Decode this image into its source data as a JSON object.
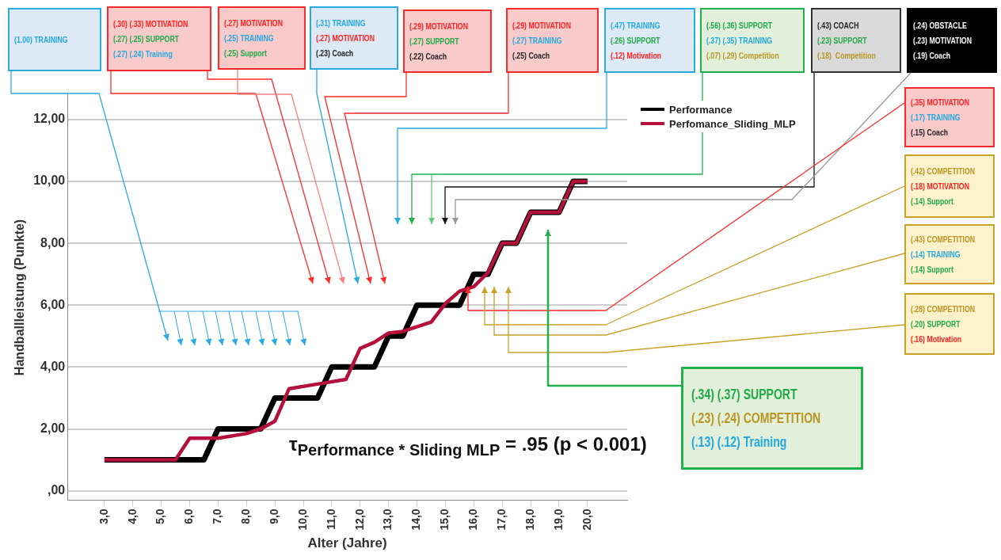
{
  "chart_data": {
    "type": "line",
    "xlabel": "Alter (Jahre)",
    "ylabel": "Handballleistung (Punkte)",
    "series": [
      {
        "name": "Performance",
        "color": "#000000",
        "x": [
          3,
          6.5,
          7,
          8.5,
          9,
          10.5,
          11,
          12.5,
          13,
          13.5,
          14,
          15.5,
          16,
          16.5,
          17,
          17.5,
          18,
          19,
          19.5,
          20
        ],
        "values": [
          1,
          1,
          2,
          2,
          3,
          3,
          4,
          4,
          5,
          5,
          6,
          6,
          7,
          7,
          8,
          8,
          9,
          9,
          10,
          10
        ]
      },
      {
        "name": "Perfomance_Sliding_MLP",
        "color": "#b5103c",
        "x": [
          3,
          5.5,
          6,
          7,
          8,
          8.5,
          9,
          9.5,
          10.5,
          11.5,
          12,
          12.5,
          13,
          13.5,
          14.5,
          15,
          15.5,
          16,
          16.5,
          17,
          17.5,
          18,
          19,
          19.5,
          20
        ],
        "values": [
          1,
          1,
          1.7,
          1.7,
          1.85,
          2,
          2.25,
          3.3,
          3.45,
          3.6,
          4.6,
          4.8,
          5.1,
          5.15,
          5.45,
          6.05,
          6.45,
          6.6,
          7.05,
          8,
          8,
          9,
          9,
          10,
          10
        ]
      }
    ],
    "xlim": [
      1.7,
      21.4
    ],
    "xticks": [
      {
        "value": 3,
        "label": "3,0"
      },
      {
        "value": 4,
        "label": "4,0"
      },
      {
        "value": 5,
        "label": "5,0"
      },
      {
        "value": 6,
        "label": "6,0"
      },
      {
        "value": 7,
        "label": "7,0"
      },
      {
        "value": 8,
        "label": "8,0"
      },
      {
        "value": 9,
        "label": "9,0"
      },
      {
        "value": 10,
        "label": "10,0"
      },
      {
        "value": 11,
        "label": "11,0"
      },
      {
        "value": 12,
        "label": "12,0"
      },
      {
        "value": 13,
        "label": "13,0"
      },
      {
        "value": 14,
        "label": "14,0"
      },
      {
        "value": 15,
        "label": "15,0"
      },
      {
        "value": 16,
        "label": "16,0"
      },
      {
        "value": 17,
        "label": "17,0"
      },
      {
        "value": 18,
        "label": "18,0"
      },
      {
        "value": 19,
        "label": "19,0"
      },
      {
        "value": 20,
        "label": "20,0"
      }
    ],
    "ylim": [
      -0.3,
      12.8
    ],
    "yticks": [
      {
        "value": 0,
        "label": ",00"
      },
      {
        "value": 2,
        "label": "2,00"
      },
      {
        "value": 4,
        "label": "4,00"
      },
      {
        "value": 6,
        "label": "6,00"
      },
      {
        "value": 8,
        "label": "8,00"
      },
      {
        "value": 10,
        "label": "10,00"
      },
      {
        "value": 12,
        "label": "12,00"
      }
    ],
    "grid": "y",
    "legend": "top right",
    "marker": "none",
    "line_style": "solid",
    "annotations": [
      "(1.00) TRAINING",
      "(.30) (.33) MOTIVATION\n(.27) (.25) SUPPORT\n(.27) (.24) Training",
      "(.27) MOTIVATION\n(.25) TRAINING\n(.25) Support",
      "(.31) TRAINING\n(.27) MOTIVATION\n(.23) Coach",
      "(.29) MOTIVATION\n(.27) SUPPORT\n(.22) Coach",
      "(.29) MOTIVATION\n(.27) TRAINING\n(.25) Coach",
      "(.47) TRAINING\n(.26) SUPPORT\n(.12) Motivation",
      "(.56) (.36) SUPPORT\n(.37) (.35) TRAINING\n(.07) (.29) Competition",
      "(.43) COACH\n(.23) SUPPORT\n(.18)  Competition",
      "(.24) OBSTACLE\n(.23) MOTIVATION\n(.19) Coach",
      "(.35) MOTIVATION\n(.17) TRAINING\n(.15) Coach",
      "(.42) COMPETITION\n(.18) MOTIVATION\n(.14) Support",
      "(.43) COMPETITION\n(.14) TRAINING\n(.14) Support",
      "(.28) COMPETITION\n(.20) SUPPORT\n(.16) Motivation",
      "(.34) (.37) SUPPORT\n(.23) (.24) COMPETITION\n(.13) (.12) Training",
      "τ$_{Performance * Sliding MLP}$ = .95 (p < 0.001)"
    ]
  }
}
